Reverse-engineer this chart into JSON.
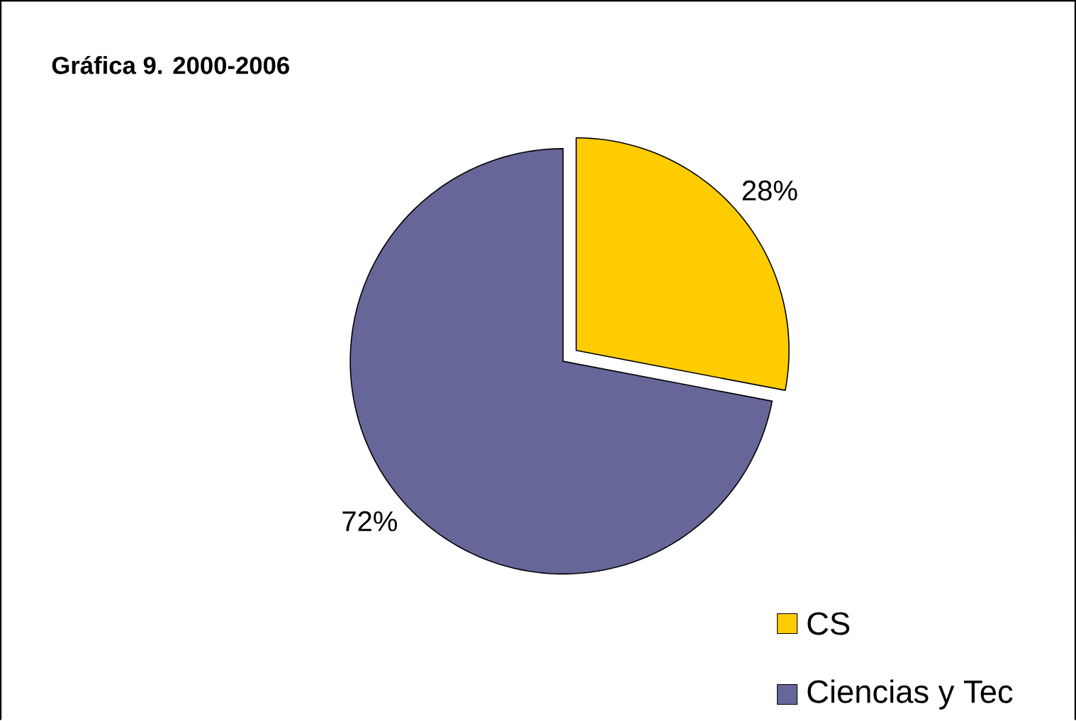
{
  "chart_data": {
    "type": "pie",
    "title": "Gráfica 9.  2000-2006",
    "categories": [
      "CS",
      "Ciencias y Tec"
    ],
    "values": [
      28,
      72
    ],
    "colors": [
      "#ffcc00",
      "#666699"
    ],
    "value_labels": [
      "28%",
      "72%"
    ],
    "legend": "bottom right"
  }
}
